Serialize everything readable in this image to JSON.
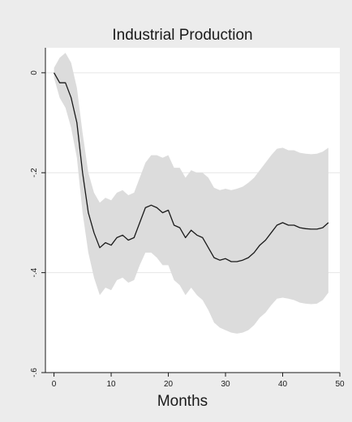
{
  "chart_data": {
    "type": "area",
    "title": "Industrial Production",
    "xlabel": "Months",
    "ylabel": "",
    "xlim": [
      -1.5,
      50
    ],
    "ylim": [
      -0.6,
      0.05
    ],
    "x_ticks": [
      0,
      10,
      20,
      30,
      40,
      50
    ],
    "y_ticks": [
      0,
      -0.2,
      -0.4,
      -0.6
    ],
    "y_tick_labels": [
      "0",
      "-.2",
      "-.4",
      "-.6"
    ],
    "grid": "horizontal",
    "legend": "none",
    "colors": {
      "line": "#1a1a1a",
      "band": "#dcdcdc",
      "plot_bg": "#ffffff",
      "outer_bg": "#ececec",
      "grid": "#e6e6e6"
    },
    "series": [
      {
        "role": "estimate",
        "x": [
          0,
          1,
          2,
          3,
          4,
          5,
          6,
          7,
          8,
          9,
          10,
          11,
          12,
          13,
          14,
          15,
          16,
          17,
          18,
          19,
          20,
          21,
          22,
          23,
          24,
          25,
          26,
          27,
          28,
          29,
          30,
          31,
          32,
          33,
          34,
          35,
          36,
          37,
          38,
          39,
          40,
          41,
          42,
          43,
          44,
          45,
          46,
          47,
          48
        ],
        "values": [
          0,
          -0.02,
          -0.02,
          -0.05,
          -0.1,
          -0.2,
          -0.28,
          -0.32,
          -0.35,
          -0.34,
          -0.345,
          -0.33,
          -0.325,
          -0.335,
          -0.33,
          -0.3,
          -0.27,
          -0.265,
          -0.27,
          -0.28,
          -0.275,
          -0.305,
          -0.31,
          -0.33,
          -0.315,
          -0.325,
          -0.33,
          -0.35,
          -0.37,
          -0.375,
          -0.372,
          -0.378,
          -0.378,
          -0.375,
          -0.37,
          -0.36,
          -0.345,
          -0.335,
          -0.32,
          -0.305,
          -0.3,
          -0.305,
          -0.305,
          -0.31,
          -0.312,
          -0.313,
          -0.313,
          -0.31,
          -0.3
        ]
      },
      {
        "role": "upper-bound",
        "x": [
          0,
          1,
          2,
          3,
          4,
          5,
          6,
          7,
          8,
          9,
          10,
          11,
          12,
          13,
          14,
          15,
          16,
          17,
          18,
          19,
          20,
          21,
          22,
          23,
          24,
          25,
          26,
          27,
          28,
          29,
          30,
          31,
          32,
          33,
          34,
          35,
          36,
          37,
          38,
          39,
          40,
          41,
          42,
          43,
          44,
          45,
          46,
          47,
          48
        ],
        "values": [
          0.01,
          0.03,
          0.04,
          0.02,
          -0.03,
          -0.12,
          -0.2,
          -0.24,
          -0.26,
          -0.25,
          -0.255,
          -0.24,
          -0.235,
          -0.245,
          -0.24,
          -0.21,
          -0.18,
          -0.165,
          -0.165,
          -0.17,
          -0.165,
          -0.19,
          -0.19,
          -0.21,
          -0.195,
          -0.2,
          -0.2,
          -0.21,
          -0.23,
          -0.235,
          -0.232,
          -0.235,
          -0.232,
          -0.228,
          -0.22,
          -0.21,
          -0.195,
          -0.18,
          -0.165,
          -0.152,
          -0.15,
          -0.155,
          -0.155,
          -0.16,
          -0.162,
          -0.163,
          -0.162,
          -0.158,
          -0.15
        ]
      },
      {
        "role": "lower-bound",
        "x": [
          0,
          1,
          2,
          3,
          4,
          5,
          6,
          7,
          8,
          9,
          10,
          11,
          12,
          13,
          14,
          15,
          16,
          17,
          18,
          19,
          20,
          21,
          22,
          23,
          24,
          25,
          26,
          27,
          28,
          29,
          30,
          31,
          32,
          33,
          34,
          35,
          36,
          37,
          38,
          39,
          40,
          41,
          42,
          43,
          44,
          45,
          46,
          47,
          48
        ],
        "values": [
          -0.01,
          -0.05,
          -0.07,
          -0.11,
          -0.17,
          -0.28,
          -0.36,
          -0.41,
          -0.445,
          -0.43,
          -0.435,
          -0.415,
          -0.41,
          -0.42,
          -0.415,
          -0.385,
          -0.36,
          -0.36,
          -0.37,
          -0.385,
          -0.385,
          -0.415,
          -0.425,
          -0.445,
          -0.43,
          -0.445,
          -0.455,
          -0.475,
          -0.5,
          -0.51,
          -0.515,
          -0.52,
          -0.522,
          -0.52,
          -0.515,
          -0.505,
          -0.49,
          -0.48,
          -0.465,
          -0.452,
          -0.45,
          -0.452,
          -0.455,
          -0.46,
          -0.462,
          -0.463,
          -0.462,
          -0.455,
          -0.44
        ]
      }
    ]
  }
}
